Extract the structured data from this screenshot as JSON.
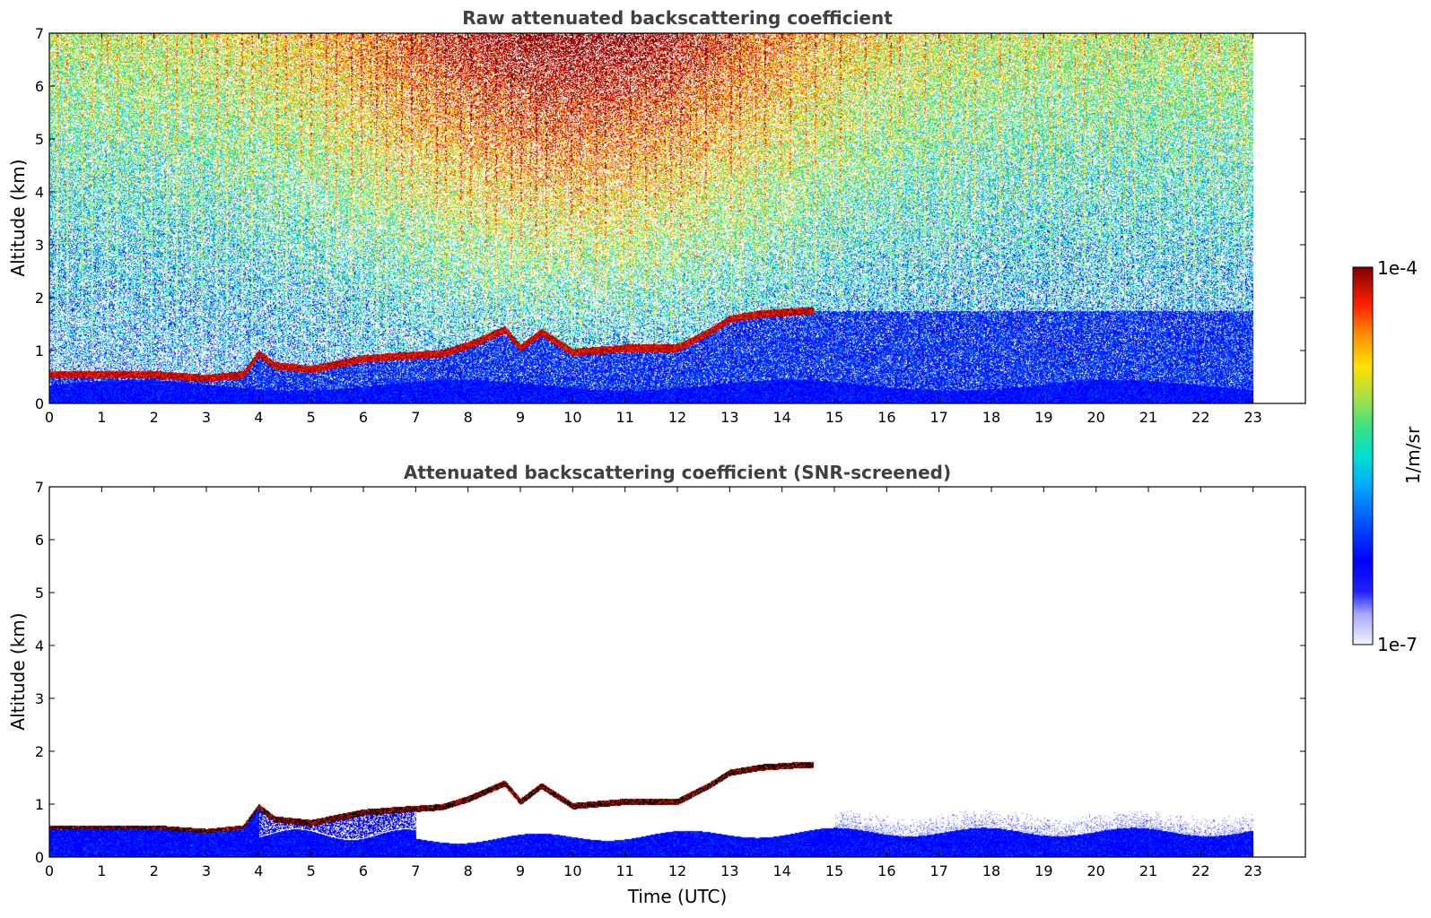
{
  "chart_data": [
    {
      "type": "heatmap",
      "title": "Raw attenuated backscattering coefficient",
      "xlabel": "",
      "ylabel": "Altitude (km)",
      "xlim": [
        0,
        24
      ],
      "ylim": [
        0,
        7
      ],
      "xticks": [
        "0",
        "1",
        "2",
        "3",
        "4",
        "5",
        "6",
        "7",
        "8",
        "9",
        "10",
        "11",
        "12",
        "13",
        "14",
        "15",
        "16",
        "17",
        "18",
        "19",
        "20",
        "21",
        "22",
        "23"
      ],
      "yticks": [
        "0",
        "1",
        "2",
        "3",
        "4",
        "5",
        "6",
        "7"
      ],
      "data_x_extent": [
        0,
        23
      ],
      "layer_top_km": [
        {
          "t": 0,
          "z": 0.55
        },
        {
          "t": 1,
          "z": 0.55
        },
        {
          "t": 2,
          "z": 0.55
        },
        {
          "t": 3,
          "z": 0.48
        },
        {
          "t": 3.7,
          "z": 0.55
        },
        {
          "t": 4,
          "z": 0.95
        },
        {
          "t": 4.3,
          "z": 0.72
        },
        {
          "t": 5,
          "z": 0.65
        },
        {
          "t": 6,
          "z": 0.85
        },
        {
          "t": 6.7,
          "z": 0.9
        },
        {
          "t": 7.5,
          "z": 0.95
        },
        {
          "t": 8,
          "z": 1.1
        },
        {
          "t": 8.7,
          "z": 1.4
        },
        {
          "t": 9,
          "z": 1.05
        },
        {
          "t": 9.4,
          "z": 1.35
        },
        {
          "t": 10,
          "z": 0.97
        },
        {
          "t": 11,
          "z": 1.05
        },
        {
          "t": 12,
          "z": 1.05
        },
        {
          "t": 12.6,
          "z": 1.35
        },
        {
          "t": 13,
          "z": 1.6
        },
        {
          "t": 13.6,
          "z": 1.7
        },
        {
          "t": 14.4,
          "z": 1.75
        }
      ]
    },
    {
      "type": "heatmap",
      "title": "Attenuated backscattering coefficient (SNR-screened)",
      "xlabel": "Time (UTC)",
      "ylabel": "Altitude (km)",
      "xlim": [
        0,
        24
      ],
      "ylim": [
        0,
        7
      ],
      "xticks": [
        "0",
        "1",
        "2",
        "3",
        "4",
        "5",
        "6",
        "7",
        "8",
        "9",
        "10",
        "11",
        "12",
        "13",
        "14",
        "15",
        "16",
        "17",
        "18",
        "19",
        "20",
        "21",
        "22",
        "23"
      ],
      "yticks": [
        "0",
        "1",
        "2",
        "3",
        "4",
        "5",
        "6",
        "7"
      ],
      "data_x_extent": [
        0,
        23
      ]
    }
  ],
  "colorbar": {
    "label": "1/m/sr",
    "max_label": "1e-4",
    "min_label": "1e-7",
    "scale": "log",
    "colors": [
      "#f0f0ff",
      "#c8c8ff",
      "#6060ff",
      "#0000ff",
      "#0060ff",
      "#00c0ff",
      "#00e0c0",
      "#60e060",
      "#c0e040",
      "#ffe000",
      "#ff9000",
      "#ff3000",
      "#d00000",
      "#800000"
    ]
  }
}
